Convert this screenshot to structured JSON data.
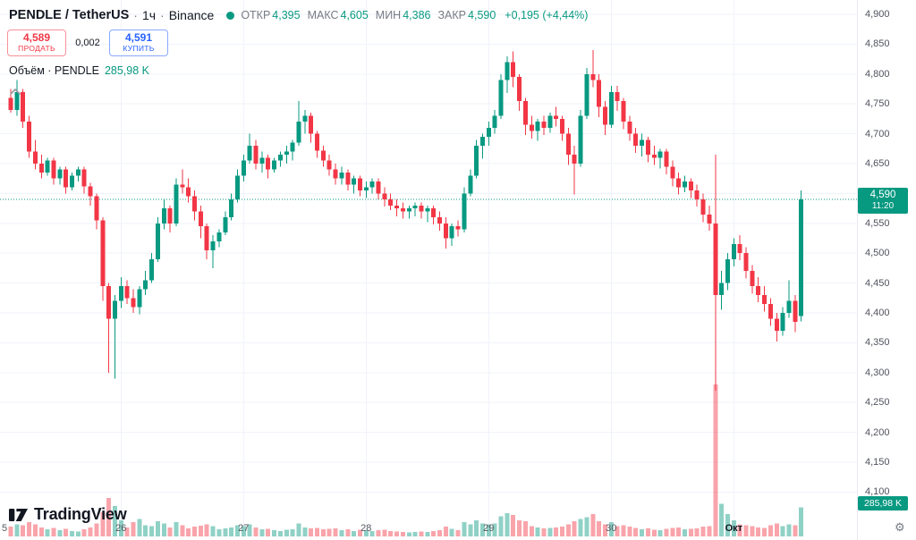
{
  "colors": {
    "up": "#089981",
    "down": "#F23645",
    "buy_blue": "#2962FF",
    "sell_red": "#F23645",
    "text": "#131722",
    "muted": "#787B86"
  },
  "header": {
    "symbol": "PENDLE / TetherUS",
    "sep": "·",
    "interval": "1ч",
    "exchange": "Binance",
    "ohlc": [
      {
        "label": "ОТКР",
        "value": "4,395"
      },
      {
        "label": "МАКС",
        "value": "4,605"
      },
      {
        "label": "МИН",
        "value": "4,386"
      },
      {
        "label": "ЗАКР",
        "value": "4,590"
      }
    ],
    "change": "+0,195 (+4,44%)"
  },
  "trade_panel": {
    "sell_price": "4,589",
    "sell_label": "ПРОДАТЬ",
    "spread": "0,002",
    "buy_price": "4,591",
    "buy_label": "КУПИТЬ"
  },
  "volume_row": {
    "label": "Объём · PENDLE",
    "value": "285,98 K"
  },
  "price_axis": {
    "labels": [
      {
        "text": "4,900",
        "value": 4900
      },
      {
        "text": "4,850",
        "value": 4850
      },
      {
        "text": "4,800",
        "value": 4800
      },
      {
        "text": "4,750",
        "value": 4750
      },
      {
        "text": "4,700",
        "value": 4700
      },
      {
        "text": "4,650",
        "value": 4650
      },
      {
        "text": "4,600",
        "value": 4600
      },
      {
        "text": "4,550",
        "value": 4550
      },
      {
        "text": "4,500",
        "value": 4500
      },
      {
        "text": "4,450",
        "value": 4450
      },
      {
        "text": "4,400",
        "value": 4400
      },
      {
        "text": "4,350",
        "value": 4350
      },
      {
        "text": "4,300",
        "value": 4300
      },
      {
        "text": "4,250",
        "value": 4250
      },
      {
        "text": "4,200",
        "value": 4200
      },
      {
        "text": "4,150",
        "value": 4150
      },
      {
        "text": "4,100",
        "value": 4100
      }
    ],
    "price_badge": {
      "price": "4,590",
      "countdown": "11:20"
    },
    "volume_badge": {
      "value": "285,98 K"
    }
  },
  "time_axis": {
    "labels": [
      {
        "text": "5",
        "index": -1,
        "bold": false
      },
      {
        "text": "26",
        "index": 18,
        "bold": false
      },
      {
        "text": "27",
        "index": 38,
        "bold": false
      },
      {
        "text": "28",
        "index": 58,
        "bold": false
      },
      {
        "text": "29",
        "index": 78,
        "bold": false
      },
      {
        "text": "30",
        "index": 98,
        "bold": false
      },
      {
        "text": "Окт",
        "index": 118,
        "bold": true
      }
    ]
  },
  "logo": {
    "text": "TradingView"
  },
  "chart_data": {
    "type": "candlestick",
    "symbol": "PENDLE / TetherUS",
    "interval": "1ч",
    "exchange": "Binance",
    "current_price": 4590,
    "current_bar": {
      "open": 4395,
      "high": 4605,
      "low": 4386,
      "close": 4590,
      "change": "+0,195",
      "change_pct": "+4,44%",
      "volume": "285,98 K"
    },
    "y_axis": {
      "min": 4100,
      "max": 4900,
      "step": 50
    },
    "volume_unit": "K",
    "volume_scale_max_k": 1500,
    "day_start_indices": [
      18,
      38,
      58,
      78,
      98,
      118
    ],
    "candle_format": [
      "open",
      "high",
      "low",
      "close",
      "volume_k"
    ],
    "candles": [
      [
        4760,
        4775,
        4735,
        4740,
        95
      ],
      [
        4740,
        4790,
        4730,
        4770,
        120
      ],
      [
        4770,
        4775,
        4710,
        4720,
        110
      ],
      [
        4720,
        4730,
        4660,
        4670,
        140
      ],
      [
        4670,
        4690,
        4640,
        4650,
        120
      ],
      [
        4650,
        4665,
        4625,
        4635,
        90
      ],
      [
        4635,
        4660,
        4630,
        4655,
        70
      ],
      [
        4655,
        4660,
        4615,
        4625,
        85
      ],
      [
        4625,
        4645,
        4615,
        4640,
        60
      ],
      [
        4640,
        4645,
        4600,
        4610,
        75
      ],
      [
        4610,
        4635,
        4605,
        4630,
        55
      ],
      [
        4630,
        4645,
        4620,
        4640,
        50
      ],
      [
        4640,
        4645,
        4600,
        4612,
        70
      ],
      [
        4612,
        4618,
        4580,
        4595,
        90
      ],
      [
        4595,
        4600,
        4540,
        4555,
        130
      ],
      [
        4555,
        4560,
        4420,
        4445,
        240
      ],
      [
        4445,
        4450,
        4300,
        4390,
        380
      ],
      [
        4390,
        4430,
        4290,
        4420,
        300
      ],
      [
        4420,
        4460,
        4408,
        4445,
        160
      ],
      [
        4445,
        4455,
        4415,
        4425,
        90
      ],
      [
        4425,
        4440,
        4400,
        4410,
        140
      ],
      [
        4410,
        4445,
        4398,
        4440,
        170
      ],
      [
        4440,
        4470,
        4430,
        4455,
        110
      ],
      [
        4455,
        4500,
        4450,
        4490,
        100
      ],
      [
        4490,
        4560,
        4485,
        4550,
        150
      ],
      [
        4550,
        4590,
        4540,
        4575,
        130
      ],
      [
        4575,
        4580,
        4535,
        4550,
        90
      ],
      [
        4550,
        4625,
        4545,
        4615,
        140
      ],
      [
        4615,
        4640,
        4600,
        4610,
        110
      ],
      [
        4610,
        4625,
        4585,
        4595,
        80
      ],
      [
        4595,
        4605,
        4555,
        4570,
        95
      ],
      [
        4570,
        4580,
        4525,
        4545,
        105
      ],
      [
        4545,
        4550,
        4490,
        4505,
        120
      ],
      [
        4505,
        4530,
        4475,
        4520,
        100
      ],
      [
        4520,
        4540,
        4510,
        4535,
        70
      ],
      [
        4535,
        4570,
        4530,
        4560,
        80
      ],
      [
        4560,
        4600,
        4555,
        4590,
        90
      ],
      [
        4590,
        4640,
        4585,
        4630,
        110
      ],
      [
        4630,
        4665,
        4620,
        4655,
        100
      ],
      [
        4655,
        4700,
        4650,
        4680,
        120
      ],
      [
        4680,
        4690,
        4640,
        4650,
        90
      ],
      [
        4650,
        4670,
        4635,
        4660,
        70
      ],
      [
        4660,
        4665,
        4625,
        4640,
        75
      ],
      [
        4640,
        4660,
        4635,
        4655,
        60
      ],
      [
        4655,
        4670,
        4645,
        4665,
        55
      ],
      [
        4665,
        4680,
        4650,
        4670,
        65
      ],
      [
        4670,
        4690,
        4655,
        4685,
        70
      ],
      [
        4685,
        4755,
        4680,
        4720,
        130
      ],
      [
        4720,
        4740,
        4700,
        4730,
        90
      ],
      [
        4730,
        4735,
        4685,
        4700,
        80
      ],
      [
        4700,
        4705,
        4660,
        4672,
        85
      ],
      [
        4672,
        4680,
        4645,
        4655,
        70
      ],
      [
        4655,
        4665,
        4630,
        4640,
        75
      ],
      [
        4640,
        4650,
        4615,
        4625,
        80
      ],
      [
        4625,
        4645,
        4615,
        4635,
        60
      ],
      [
        4635,
        4640,
        4605,
        4615,
        70
      ],
      [
        4615,
        4630,
        4600,
        4625,
        55
      ],
      [
        4625,
        4630,
        4595,
        4605,
        65
      ],
      [
        4605,
        4620,
        4592,
        4610,
        60
      ],
      [
        4610,
        4625,
        4600,
        4620,
        55
      ],
      [
        4620,
        4625,
        4590,
        4600,
        60
      ],
      [
        4600,
        4610,
        4578,
        4590,
        65
      ],
      [
        4590,
        4600,
        4572,
        4580,
        55
      ],
      [
        4580,
        4590,
        4562,
        4575,
        50
      ],
      [
        4575,
        4585,
        4558,
        4570,
        45
      ],
      [
        4570,
        4580,
        4558,
        4575,
        40
      ],
      [
        4575,
        4585,
        4562,
        4580,
        45
      ],
      [
        4580,
        4585,
        4558,
        4570,
        50
      ],
      [
        4570,
        4580,
        4552,
        4575,
        45
      ],
      [
        4575,
        4580,
        4548,
        4560,
        55
      ],
      [
        4560,
        4570,
        4538,
        4550,
        60
      ],
      [
        4550,
        4560,
        4508,
        4525,
        95
      ],
      [
        4525,
        4550,
        4512,
        4545,
        75
      ],
      [
        4545,
        4555,
        4528,
        4540,
        60
      ],
      [
        4540,
        4610,
        4535,
        4600,
        140
      ],
      [
        4600,
        4640,
        4595,
        4630,
        120
      ],
      [
        4630,
        4690,
        4625,
        4680,
        160
      ],
      [
        4680,
        4700,
        4658,
        4695,
        130
      ],
      [
        4695,
        4720,
        4680,
        4710,
        120
      ],
      [
        4710,
        4740,
        4700,
        4730,
        130
      ],
      [
        4730,
        4800,
        4725,
        4790,
        200
      ],
      [
        4790,
        4830,
        4768,
        4820,
        230
      ],
      [
        4820,
        4838,
        4778,
        4795,
        210
      ],
      [
        4795,
        4800,
        4738,
        4755,
        160
      ],
      [
        4755,
        4760,
        4698,
        4715,
        150
      ],
      [
        4715,
        4730,
        4692,
        4705,
        100
      ],
      [
        4705,
        4725,
        4688,
        4720,
        90
      ],
      [
        4720,
        4730,
        4698,
        4710,
        80
      ],
      [
        4710,
        4735,
        4702,
        4730,
        85
      ],
      [
        4730,
        4745,
        4712,
        4725,
        90
      ],
      [
        4725,
        4730,
        4688,
        4700,
        95
      ],
      [
        4700,
        4710,
        4648,
        4665,
        120
      ],
      [
        4665,
        4680,
        4598,
        4650,
        150
      ],
      [
        4650,
        4740,
        4645,
        4730,
        170
      ],
      [
        4730,
        4810,
        4725,
        4800,
        190
      ],
      [
        4800,
        4840,
        4778,
        4790,
        220
      ],
      [
        4790,
        4800,
        4728,
        4745,
        150
      ],
      [
        4745,
        4755,
        4698,
        4715,
        120
      ],
      [
        4715,
        4780,
        4710,
        4770,
        140
      ],
      [
        4770,
        4780,
        4738,
        4755,
        100
      ],
      [
        4755,
        4760,
        4708,
        4720,
        110
      ],
      [
        4720,
        4730,
        4688,
        4700,
        95
      ],
      [
        4700,
        4710,
        4668,
        4680,
        85
      ],
      [
        4680,
        4700,
        4662,
        4690,
        70
      ],
      [
        4690,
        4695,
        4652,
        4665,
        80
      ],
      [
        4665,
        4680,
        4648,
        4660,
        65
      ],
      [
        4660,
        4675,
        4642,
        4670,
        60
      ],
      [
        4670,
        4675,
        4632,
        4645,
        75
      ],
      [
        4645,
        4655,
        4612,
        4625,
        85
      ],
      [
        4625,
        4635,
        4598,
        4610,
        90
      ],
      [
        4610,
        4630,
        4602,
        4620,
        70
      ],
      [
        4620,
        4625,
        4592,
        4605,
        75
      ],
      [
        4605,
        4615,
        4578,
        4590,
        80
      ],
      [
        4590,
        4600,
        4552,
        4565,
        95
      ],
      [
        4565,
        4580,
        4538,
        4550,
        100
      ],
      [
        4550,
        4665,
        4270,
        4430,
        1500
      ],
      [
        4430,
        4470,
        4405,
        4450,
        320
      ],
      [
        4450,
        4500,
        4438,
        4490,
        220
      ],
      [
        4490,
        4525,
        4478,
        4515,
        160
      ],
      [
        4515,
        4530,
        4488,
        4500,
        120
      ],
      [
        4500,
        4510,
        4458,
        4470,
        110
      ],
      [
        4470,
        4480,
        4432,
        4445,
        100
      ],
      [
        4445,
        4460,
        4418,
        4430,
        90
      ],
      [
        4430,
        4445,
        4402,
        4415,
        85
      ],
      [
        4415,
        4425,
        4378,
        4390,
        110
      ],
      [
        4390,
        4400,
        4352,
        4370,
        130
      ],
      [
        4370,
        4410,
        4362,
        4400,
        100
      ],
      [
        4400,
        4455,
        4392,
        4420,
        120
      ],
      [
        4420,
        4430,
        4368,
        4385,
        110
      ],
      [
        4395,
        4605,
        4386,
        4590,
        286
      ]
    ]
  }
}
